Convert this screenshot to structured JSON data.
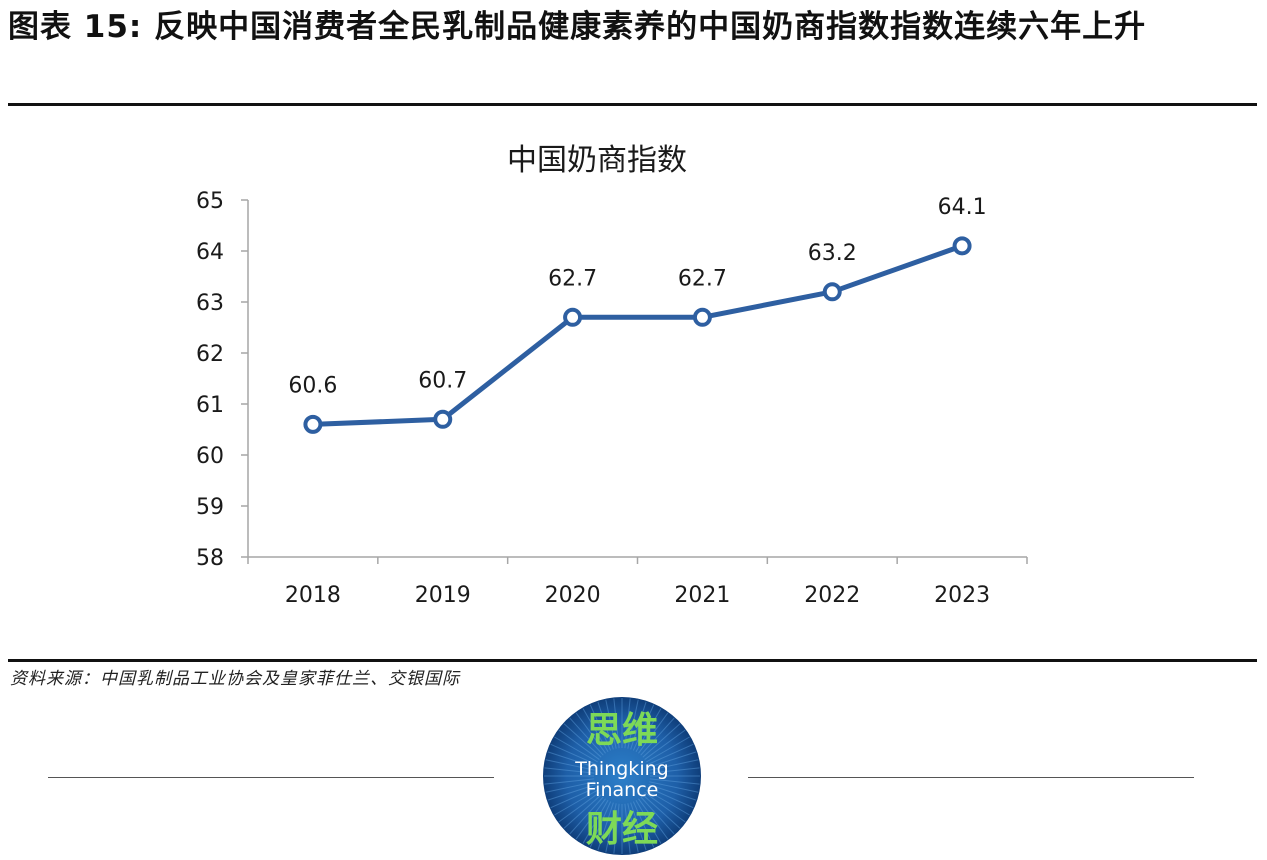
{
  "header": {
    "figure_title": "图表 15: 反映中国消费者全民乳制品健康素养的中国奶商指数指数连续六年上升"
  },
  "footer": {
    "source": "资料来源：中国乳制品工业协会及皇家菲仕兰、交银国际"
  },
  "watermark": {
    "top_text": "思维",
    "middle_line1": "Thingking",
    "middle_line2": "Finance",
    "bottom_text": "财经"
  },
  "colors": {
    "line": "#2E5FA1",
    "axis": "#A6A6A6",
    "text": "#1A1A1A",
    "watermark_green": "#7DD957",
    "watermark_blue": "#1E5FA8"
  },
  "chart_data": {
    "type": "line",
    "title": "中国奶商指数",
    "categories": [
      "2018",
      "2019",
      "2020",
      "2021",
      "2022",
      "2023"
    ],
    "values": [
      60.6,
      60.7,
      62.7,
      62.7,
      63.2,
      64.1
    ],
    "data_labels": [
      "60.6",
      "60.7",
      "62.7",
      "62.7",
      "63.2",
      "64.1"
    ],
    "ylim": [
      58,
      65
    ],
    "yticks": [
      "58",
      "59",
      "60",
      "61",
      "62",
      "63",
      "64",
      "65"
    ],
    "xlabel": "",
    "ylabel": "",
    "grid": false,
    "legend": "none",
    "marker": "hollow-circle"
  }
}
